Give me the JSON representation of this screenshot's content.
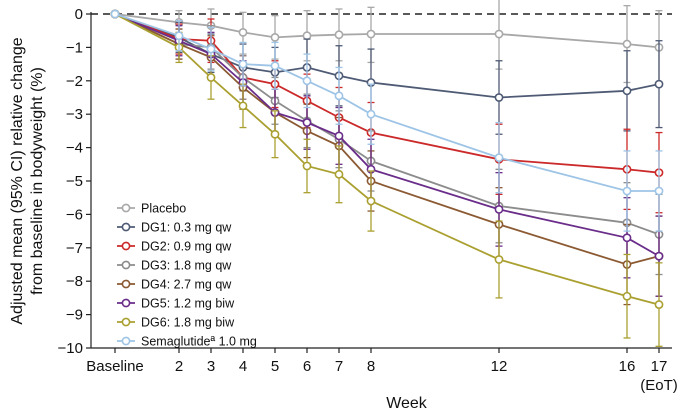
{
  "chart_data": {
    "type": "line",
    "title": "",
    "xlabel": "Week",
    "ylabel_lines": [
      "Adjusted mean (95% CI) relative change",
      "from baseline in bodyweight (%)"
    ],
    "x_ticks": [
      {
        "x": 0,
        "label": "Baseline"
      },
      {
        "x": 2,
        "label": "2"
      },
      {
        "x": 3,
        "label": "3"
      },
      {
        "x": 4,
        "label": "4"
      },
      {
        "x": 5,
        "label": "5"
      },
      {
        "x": 6,
        "label": "6"
      },
      {
        "x": 7,
        "label": "7"
      },
      {
        "x": 8,
        "label": "8"
      },
      {
        "x": 12,
        "label": "12"
      },
      {
        "x": 16,
        "label": "16"
      },
      {
        "x": 17,
        "label": "17"
      }
    ],
    "x_extra_label": "(EoT)",
    "y_ticks": [
      "0",
      "−1",
      "−2",
      "−3",
      "−4",
      "−5",
      "−6",
      "−7",
      "−8",
      "−9",
      "−10"
    ],
    "ylim": [
      -10,
      0
    ],
    "reference_line": 0,
    "legend_position": "bottom-left",
    "series": [
      {
        "name": "Placebo",
        "color": "#a8a8a8",
        "x": [
          0,
          2,
          3,
          4,
          5,
          6,
          7,
          8,
          12,
          16,
          17
        ],
        "y": [
          0,
          -0.25,
          -0.35,
          -0.55,
          -0.7,
          -0.65,
          -0.62,
          -0.6,
          -0.6,
          -0.9,
          -1.0
        ],
        "lo": [
          0,
          -0.65,
          -0.9,
          -1.2,
          -1.35,
          -1.4,
          -1.4,
          -1.45,
          -1.65,
          -2.05,
          -2.1
        ],
        "hi": [
          0,
          0.1,
          0.15,
          0.05,
          -0.05,
          0.1,
          0.15,
          0.2,
          0.55,
          0.25,
          0.1
        ]
      },
      {
        "name": "DG1:  0.3 mg qw",
        "color": "#4f5b75",
        "x": [
          0,
          2,
          3,
          4,
          5,
          6,
          7,
          8,
          12,
          16,
          17
        ],
        "y": [
          0,
          -0.7,
          -1.2,
          -1.6,
          -1.75,
          -1.6,
          -1.85,
          -2.05,
          -2.5,
          -2.3,
          -2.1
        ],
        "lo": [
          0,
          -1.15,
          -1.75,
          -2.3,
          -2.5,
          -2.45,
          -2.75,
          -3.05,
          -3.6,
          -3.5,
          -3.4
        ],
        "hi": [
          0,
          -0.25,
          -0.6,
          -0.9,
          -1.0,
          -0.75,
          -0.95,
          -1.05,
          -1.4,
          -1.1,
          -0.8
        ]
      },
      {
        "name": "DG2:  0.9 mg qw",
        "color": "#cc2a2a",
        "x": [
          0,
          2,
          3,
          4,
          5,
          6,
          7,
          8,
          12,
          16,
          17
        ],
        "y": [
          0,
          -0.75,
          -0.8,
          -1.9,
          -2.1,
          -2.6,
          -3.1,
          -3.55,
          -4.35,
          -4.65,
          -4.75
        ],
        "lo": [
          0,
          -1.2,
          -1.45,
          -2.55,
          -2.8,
          -3.4,
          -4.0,
          -4.45,
          -5.4,
          -5.85,
          -5.95
        ],
        "hi": [
          0,
          -0.3,
          -0.15,
          -1.25,
          -1.4,
          -1.8,
          -2.2,
          -2.65,
          -3.3,
          -3.45,
          -3.55
        ]
      },
      {
        "name": "DG3:  1.8 mg qw",
        "color": "#8c8c8c",
        "x": [
          0,
          2,
          3,
          4,
          5,
          6,
          7,
          8,
          12,
          16,
          17
        ],
        "y": [
          0,
          -0.9,
          -1.0,
          -1.9,
          -2.6,
          -3.2,
          -3.75,
          -4.4,
          -5.75,
          -6.25,
          -6.6
        ],
        "lo": [
          0,
          -1.35,
          -1.65,
          -2.55,
          -3.3,
          -4.0,
          -4.6,
          -5.3,
          -6.85,
          -7.45,
          -7.8
        ],
        "hi": [
          0,
          -0.45,
          -0.35,
          -1.25,
          -1.9,
          -2.4,
          -2.9,
          -3.5,
          -4.65,
          -5.05,
          -5.4
        ]
      },
      {
        "name": "DG4:  2.7 mg qw",
        "color": "#8b5a33",
        "x": [
          0,
          2,
          3,
          4,
          5,
          6,
          7,
          8,
          12,
          16,
          17
        ],
        "y": [
          0,
          -0.9,
          -1.3,
          -2.2,
          -2.95,
          -3.5,
          -3.95,
          -5.0,
          -6.3,
          -7.5,
          -7.25
        ],
        "lo": [
          0,
          -1.35,
          -1.95,
          -2.85,
          -3.65,
          -4.3,
          -4.8,
          -5.9,
          -7.4,
          -8.7,
          -8.45
        ],
        "hi": [
          0,
          -0.45,
          -0.65,
          -1.55,
          -2.25,
          -2.7,
          -3.1,
          -4.1,
          -5.2,
          -6.3,
          -6.05
        ]
      },
      {
        "name": "DG5:  1.2 mg biw",
        "color": "#6a2d8a",
        "x": [
          0,
          2,
          3,
          4,
          5,
          6,
          7,
          8,
          12,
          16,
          17
        ],
        "y": [
          0,
          -0.8,
          -1.2,
          -2.05,
          -2.95,
          -3.25,
          -3.65,
          -4.65,
          -5.85,
          -6.7,
          -7.25
        ],
        "lo": [
          0,
          -1.25,
          -1.85,
          -2.7,
          -3.65,
          -4.05,
          -4.5,
          -5.55,
          -6.95,
          -7.9,
          -8.45
        ],
        "hi": [
          0,
          -0.35,
          -0.55,
          -1.4,
          -2.25,
          -2.45,
          -2.8,
          -3.75,
          -4.75,
          -5.5,
          -6.05
        ]
      },
      {
        "name": "DG6:  1.8 mg biw",
        "color": "#aaa030",
        "x": [
          0,
          2,
          3,
          4,
          5,
          6,
          7,
          8,
          12,
          16,
          17
        ],
        "y": [
          0,
          -1.0,
          -1.9,
          -2.75,
          -3.6,
          -4.55,
          -4.8,
          -5.6,
          -7.35,
          -8.45,
          -8.7
        ],
        "lo": [
          0,
          -1.45,
          -2.55,
          -3.4,
          -4.3,
          -5.35,
          -5.65,
          -6.5,
          -8.5,
          -9.7,
          -9.95
        ],
        "hi": [
          0,
          -0.55,
          -1.25,
          -2.1,
          -2.9,
          -3.75,
          -3.95,
          -4.7,
          -6.2,
          -7.2,
          -7.45
        ]
      },
      {
        "name": "Semaglutideª 1.0 mg",
        "color": "#9ec4e6",
        "x": [
          0,
          2,
          3,
          4,
          5,
          6,
          7,
          8,
          12,
          16,
          17
        ],
        "y": [
          0,
          -0.65,
          -1.05,
          -1.5,
          -1.55,
          -2.0,
          -2.45,
          -3.0,
          -4.3,
          -5.3,
          -5.3
        ],
        "lo": [
          0,
          -1.1,
          -1.7,
          -2.15,
          -2.25,
          -2.8,
          -3.3,
          -3.9,
          -5.35,
          -6.5,
          -6.5
        ],
        "hi": [
          0,
          -0.2,
          -0.4,
          -0.85,
          -0.85,
          -1.2,
          -1.6,
          -2.1,
          -3.25,
          -4.1,
          -4.1
        ]
      }
    ]
  }
}
